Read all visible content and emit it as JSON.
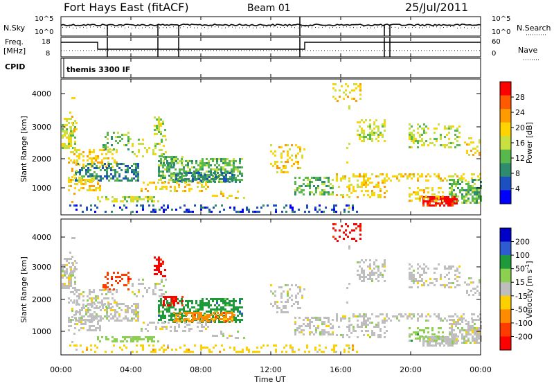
{
  "header": {
    "station": "Fort Hays East (fitACF)",
    "beam": "Beam 01",
    "date": "25/Jul/2011"
  },
  "left_labels": {
    "nsky": "N.Sky",
    "freq_line1": "Freq.",
    "freq_line2": "[MHz]",
    "cpid": "CPID"
  },
  "right_labels": {
    "nsearch": "N.Search",
    "nave": "Nave"
  },
  "cpid_text": "themis 3300 IF",
  "chart_data": [
    {
      "type": "line",
      "panel": "noise",
      "left_ticks": [
        "10^5",
        "10^0"
      ],
      "right_ticks": [
        "10^5",
        "10^0"
      ]
    },
    {
      "type": "line",
      "panel": "frequency",
      "left_ticks": [
        "18",
        "8"
      ],
      "right_ticks": [
        "60",
        "0"
      ]
    },
    {
      "type": "heatmap",
      "panel": "power",
      "ylabel": "Slant Range [km]",
      "y_ticks": [
        "4000",
        "3000",
        "2000",
        "1000"
      ],
      "colorbar": {
        "label": "Power [dB]",
        "ticks": [
          "28",
          "24",
          "20",
          "16",
          "12",
          "8",
          "4"
        ],
        "colors": [
          "#ff0000",
          "#ff5a00",
          "#ff9a00",
          "#ffd400",
          "#c8e040",
          "#58b84c",
          "#2e8b6e",
          "#1c4fbf",
          "#0000ff"
        ]
      }
    },
    {
      "type": "heatmap",
      "panel": "velocity",
      "ylabel": "Slant Range [km]",
      "y_ticks": [
        "4000",
        "3000",
        "2000",
        "1000"
      ],
      "colorbar": {
        "label": "Velocity [m s",
        "label_sup": "-1",
        "label_end": "]",
        "ticks": [
          "200",
          "100",
          "50",
          "15",
          "-15",
          "-50",
          "-100",
          "-200"
        ],
        "colors": [
          "#0000c8",
          "#2f5bd0",
          "#1e9a3a",
          "#8cd050",
          "#bebebe",
          "#ffd000",
          "#ff8c00",
          "#ff3c00",
          "#ff0000"
        ]
      }
    }
  ],
  "x_axis": {
    "ticks": [
      "00:00",
      "04:00",
      "08:00",
      "12:00",
      "16:00",
      "20:00",
      "00:00"
    ],
    "label": "Time UT"
  }
}
